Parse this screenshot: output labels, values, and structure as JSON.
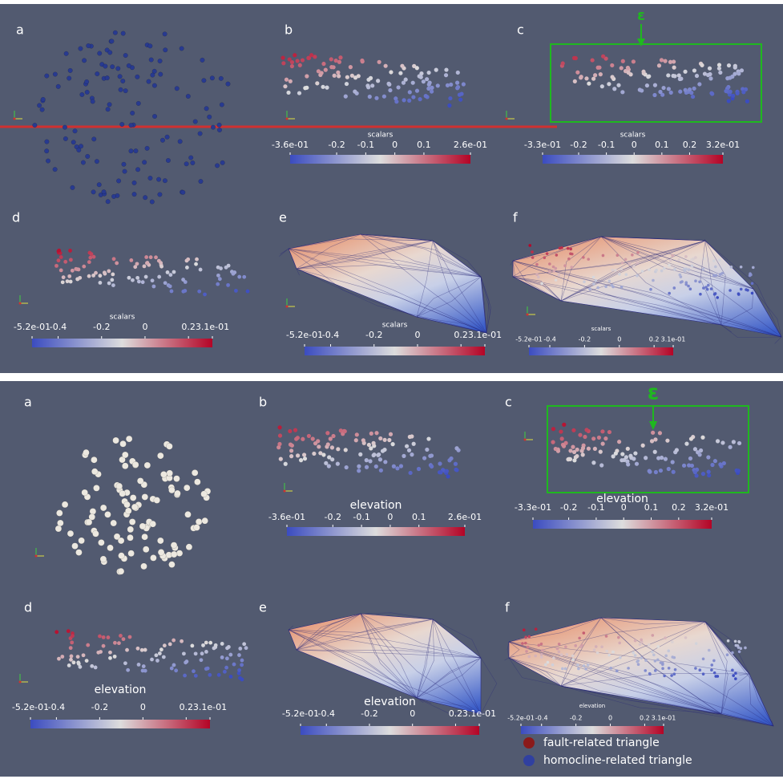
{
  "top": {
    "annotation": "ε",
    "panels": [
      {
        "label": "a"
      },
      {
        "label": "b",
        "colorbar": {
          "title": "scalars",
          "ticks": [
            "-3.6e-01",
            "-0.2",
            "-0.1",
            "0",
            "0.1",
            "2.6e-01"
          ]
        }
      },
      {
        "label": "c",
        "colorbar": {
          "title": "scalars",
          "ticks": [
            "-3.3e-01",
            "-0.2",
            "-0.1",
            "0",
            "0.1",
            "0.2",
            "3.2e-01"
          ]
        }
      },
      {
        "label": "d",
        "colorbar": {
          "title": "scalars",
          "ticks": [
            "-5.2e-01",
            "-0.4",
            "-0.2",
            "0",
            "0.2",
            "3.1e-01"
          ]
        }
      },
      {
        "label": "e",
        "colorbar": {
          "title": "scalars",
          "ticks": [
            "-5.2e-01",
            "-0.4",
            "-0.2",
            "0",
            "0.2",
            "3.1e-01"
          ]
        }
      },
      {
        "label": "f",
        "colorbar": {
          "title": "scalars",
          "ticks": [
            "-5.2e-01",
            "-0.4",
            "-0.2",
            "0",
            "0.2",
            "3.1e-01"
          ]
        }
      }
    ]
  },
  "bottom": {
    "annotation": "ε",
    "panels": [
      {
        "label": "a"
      },
      {
        "label": "b",
        "colorbar": {
          "title": "elevation",
          "ticks": [
            "-3.6e-01",
            "-0.2",
            "-0.1",
            "0",
            "0.1",
            "2.6e-01"
          ]
        }
      },
      {
        "label": "c",
        "colorbar": {
          "title": "elevation",
          "ticks": [
            "-3.3e-01",
            "-0.2",
            "-0.1",
            "0",
            "0.1",
            "0.2",
            "3.2e-01"
          ]
        }
      },
      {
        "label": "d",
        "colorbar": {
          "title": "elevation",
          "ticks": [
            "-5.2e-01",
            "-0.4",
            "-0.2",
            "0",
            "0.2",
            "3.1e-01"
          ]
        }
      },
      {
        "label": "e",
        "colorbar": {
          "title": "elevation",
          "ticks": [
            "-5.2e-01",
            "-0.4",
            "-0.2",
            "0",
            "0.2",
            "3.1e-01"
          ]
        }
      },
      {
        "label": "f",
        "colorbar": {
          "title": "elevation",
          "ticks": [
            "-5.2e-01",
            "-0.4",
            "-0.2",
            "0",
            "0.2",
            "3.1e-01"
          ]
        }
      }
    ],
    "legend": [
      "fault-related triangle",
      "homocline-related triangle"
    ]
  }
}
